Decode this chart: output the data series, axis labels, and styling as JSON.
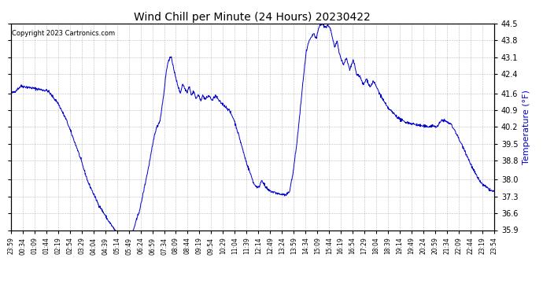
{
  "title": "Wind Chill per Minute (24 Hours) 20230422",
  "ylabel": "Temperature (°F)",
  "copyright_text": "Copyright 2023 Cartronics.com",
  "line_color": "#0000cc",
  "ylabel_color": "#0000cc",
  "background_color": "#ffffff",
  "grid_color": "#aaaaaa",
  "ylim": [
    35.9,
    44.5
  ],
  "yticks": [
    35.9,
    36.6,
    37.3,
    38.0,
    38.8,
    39.5,
    40.2,
    40.9,
    41.6,
    42.4,
    43.1,
    43.8,
    44.5
  ],
  "xtick_labels": [
    "23:59",
    "00:34",
    "01:09",
    "01:44",
    "02:19",
    "02:54",
    "03:29",
    "04:04",
    "04:39",
    "05:14",
    "05:49",
    "06:24",
    "06:59",
    "07:34",
    "08:09",
    "08:44",
    "09:19",
    "09:54",
    "10:29",
    "11:04",
    "11:39",
    "12:14",
    "12:49",
    "13:24",
    "13:59",
    "14:34",
    "15:09",
    "15:44",
    "16:19",
    "16:54",
    "17:29",
    "18:04",
    "18:39",
    "19:14",
    "19:49",
    "20:24",
    "20:59",
    "21:34",
    "22:09",
    "22:44",
    "23:19",
    "23:54"
  ],
  "keypoints": [
    [
      0,
      41.6
    ],
    [
      10,
      41.65
    ],
    [
      30,
      41.9
    ],
    [
      50,
      41.85
    ],
    [
      70,
      41.8
    ],
    [
      90,
      41.75
    ],
    [
      110,
      41.7
    ],
    [
      140,
      41.2
    ],
    [
      165,
      40.5
    ],
    [
      200,
      39.2
    ],
    [
      230,
      37.9
    ],
    [
      260,
      37.0
    ],
    [
      290,
      36.3
    ],
    [
      320,
      35.7
    ],
    [
      340,
      35.45
    ],
    [
      350,
      35.4
    ],
    [
      365,
      35.9
    ],
    [
      385,
      36.8
    ],
    [
      410,
      38.5
    ],
    [
      430,
      40.0
    ],
    [
      445,
      40.5
    ],
    [
      455,
      41.5
    ],
    [
      463,
      42.5
    ],
    [
      470,
      43.0
    ],
    [
      477,
      43.1
    ],
    [
      483,
      42.8
    ],
    [
      490,
      42.3
    ],
    [
      498,
      41.9
    ],
    [
      505,
      41.6
    ],
    [
      512,
      42.0
    ],
    [
      518,
      41.8
    ],
    [
      525,
      41.65
    ],
    [
      532,
      41.9
    ],
    [
      538,
      41.5
    ],
    [
      545,
      41.7
    ],
    [
      552,
      41.35
    ],
    [
      558,
      41.55
    ],
    [
      565,
      41.3
    ],
    [
      572,
      41.5
    ],
    [
      580,
      41.35
    ],
    [
      590,
      41.5
    ],
    [
      600,
      41.3
    ],
    [
      610,
      41.5
    ],
    [
      622,
      41.25
    ],
    [
      635,
      41.1
    ],
    [
      650,
      40.9
    ],
    [
      665,
      40.5
    ],
    [
      680,
      39.8
    ],
    [
      700,
      38.8
    ],
    [
      715,
      38.2
    ],
    [
      725,
      37.8
    ],
    [
      738,
      37.65
    ],
    [
      748,
      38.0
    ],
    [
      758,
      37.7
    ],
    [
      768,
      37.55
    ],
    [
      778,
      37.5
    ],
    [
      790,
      37.45
    ],
    [
      800,
      37.4
    ],
    [
      812,
      37.38
    ],
    [
      820,
      37.35
    ],
    [
      830,
      37.5
    ],
    [
      840,
      38.2
    ],
    [
      852,
      39.5
    ],
    [
      863,
      41.0
    ],
    [
      872,
      42.3
    ],
    [
      880,
      43.3
    ],
    [
      888,
      43.75
    ],
    [
      895,
      43.9
    ],
    [
      902,
      44.1
    ],
    [
      910,
      43.85
    ],
    [
      917,
      44.3
    ],
    [
      922,
      44.45
    ],
    [
      928,
      44.5
    ],
    [
      933,
      44.4
    ],
    [
      940,
      44.35
    ],
    [
      945,
      44.45
    ],
    [
      952,
      44.3
    ],
    [
      958,
      43.9
    ],
    [
      965,
      43.5
    ],
    [
      972,
      43.8
    ],
    [
      980,
      43.2
    ],
    [
      990,
      42.8
    ],
    [
      1000,
      43.05
    ],
    [
      1010,
      42.55
    ],
    [
      1020,
      43.0
    ],
    [
      1030,
      42.4
    ],
    [
      1040,
      42.3
    ],
    [
      1050,
      41.95
    ],
    [
      1060,
      42.2
    ],
    [
      1070,
      41.85
    ],
    [
      1080,
      42.1
    ],
    [
      1090,
      41.85
    ],
    [
      1100,
      41.55
    ],
    [
      1110,
      41.3
    ],
    [
      1120,
      41.05
    ],
    [
      1130,
      40.9
    ],
    [
      1145,
      40.7
    ],
    [
      1160,
      40.5
    ],
    [
      1175,
      40.4
    ],
    [
      1190,
      40.35
    ],
    [
      1205,
      40.3
    ],
    [
      1220,
      40.25
    ],
    [
      1240,
      40.2
    ],
    [
      1255,
      40.25
    ],
    [
      1270,
      40.2
    ],
    [
      1285,
      40.5
    ],
    [
      1300,
      40.4
    ],
    [
      1312,
      40.3
    ],
    [
      1325,
      40.0
    ],
    [
      1338,
      39.6
    ],
    [
      1350,
      39.3
    ],
    [
      1362,
      38.9
    ],
    [
      1375,
      38.5
    ],
    [
      1390,
      38.1
    ],
    [
      1405,
      37.8
    ],
    [
      1420,
      37.65
    ],
    [
      1430,
      37.55
    ],
    [
      1440,
      37.5
    ]
  ]
}
